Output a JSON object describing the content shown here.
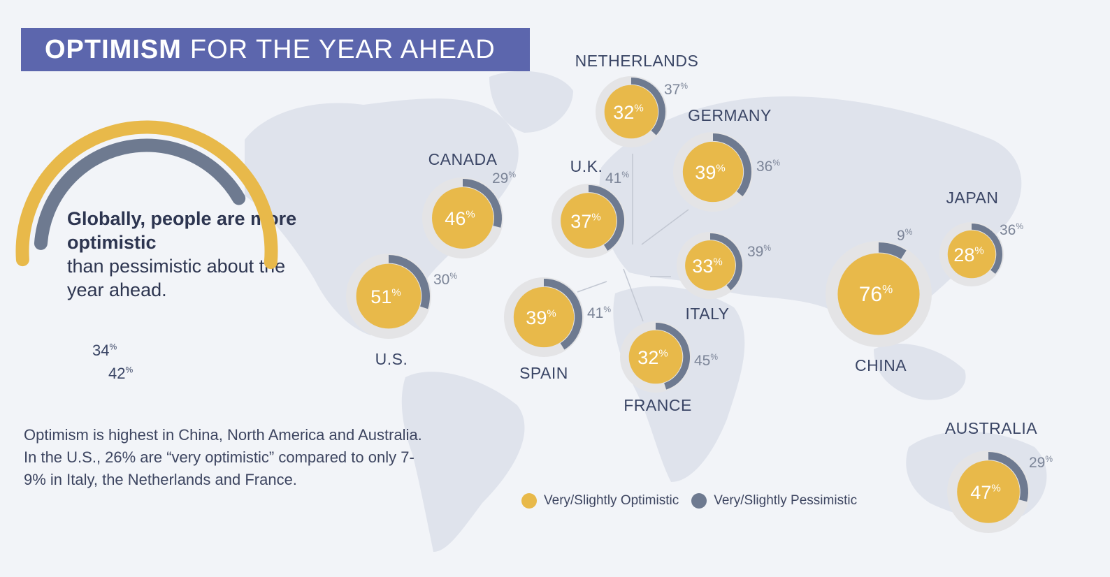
{
  "title": {
    "strong": "OPTIMISM",
    "rest": "FOR THE YEAR AHEAD"
  },
  "headline": {
    "strong": "Globally, people are more optimistic",
    "rest": "than pessimistic about the year ahead."
  },
  "note": "Optimism is highest in China, North America and Australia. In the U.S., 26% are “very optimistic” compared to only 7-9% in Italy, the Netherlands and France.",
  "legend": {
    "optimistic": "Very/Slightly Optimistic",
    "pessimistic": "Very/Slightly Pessimistic"
  },
  "colors": {
    "optimistic": "#e8b94a",
    "pessimistic": "#6e7a90",
    "ring": "#e4e4e6",
    "map": "#dfe3ec",
    "background": "#f2f4f8",
    "banner": "#5c66ad"
  },
  "chart_data": {
    "type": "pie",
    "unit": "%",
    "series": [
      {
        "name": "Very/Slightly Optimistic",
        "key": "optimistic"
      },
      {
        "name": "Very/Slightly Pessimistic",
        "key": "pessimistic"
      }
    ],
    "global": {
      "optimistic": 42,
      "pessimistic": 34
    },
    "countries": [
      {
        "name": "NETHERLANDS",
        "optimistic": 32,
        "pessimistic": 37
      },
      {
        "name": "GERMANY",
        "optimistic": 39,
        "pessimistic": 36
      },
      {
        "name": "CANADA",
        "optimistic": 46,
        "pessimistic": 29
      },
      {
        "name": "U.K.",
        "optimistic": 37,
        "pessimistic": 41
      },
      {
        "name": "U.S.",
        "optimistic": 51,
        "pessimistic": 30
      },
      {
        "name": "ITALY",
        "optimistic": 33,
        "pessimistic": 39
      },
      {
        "name": "SPAIN",
        "optimistic": 39,
        "pessimistic": 41
      },
      {
        "name": "FRANCE",
        "optimistic": 32,
        "pessimistic": 45
      },
      {
        "name": "CHINA",
        "optimistic": 76,
        "pessimistic": 9
      },
      {
        "name": "JAPAN",
        "optimistic": 28,
        "pessimistic": 36
      },
      {
        "name": "AUSTRALIA",
        "optimistic": 47,
        "pessimistic": 29
      }
    ]
  }
}
